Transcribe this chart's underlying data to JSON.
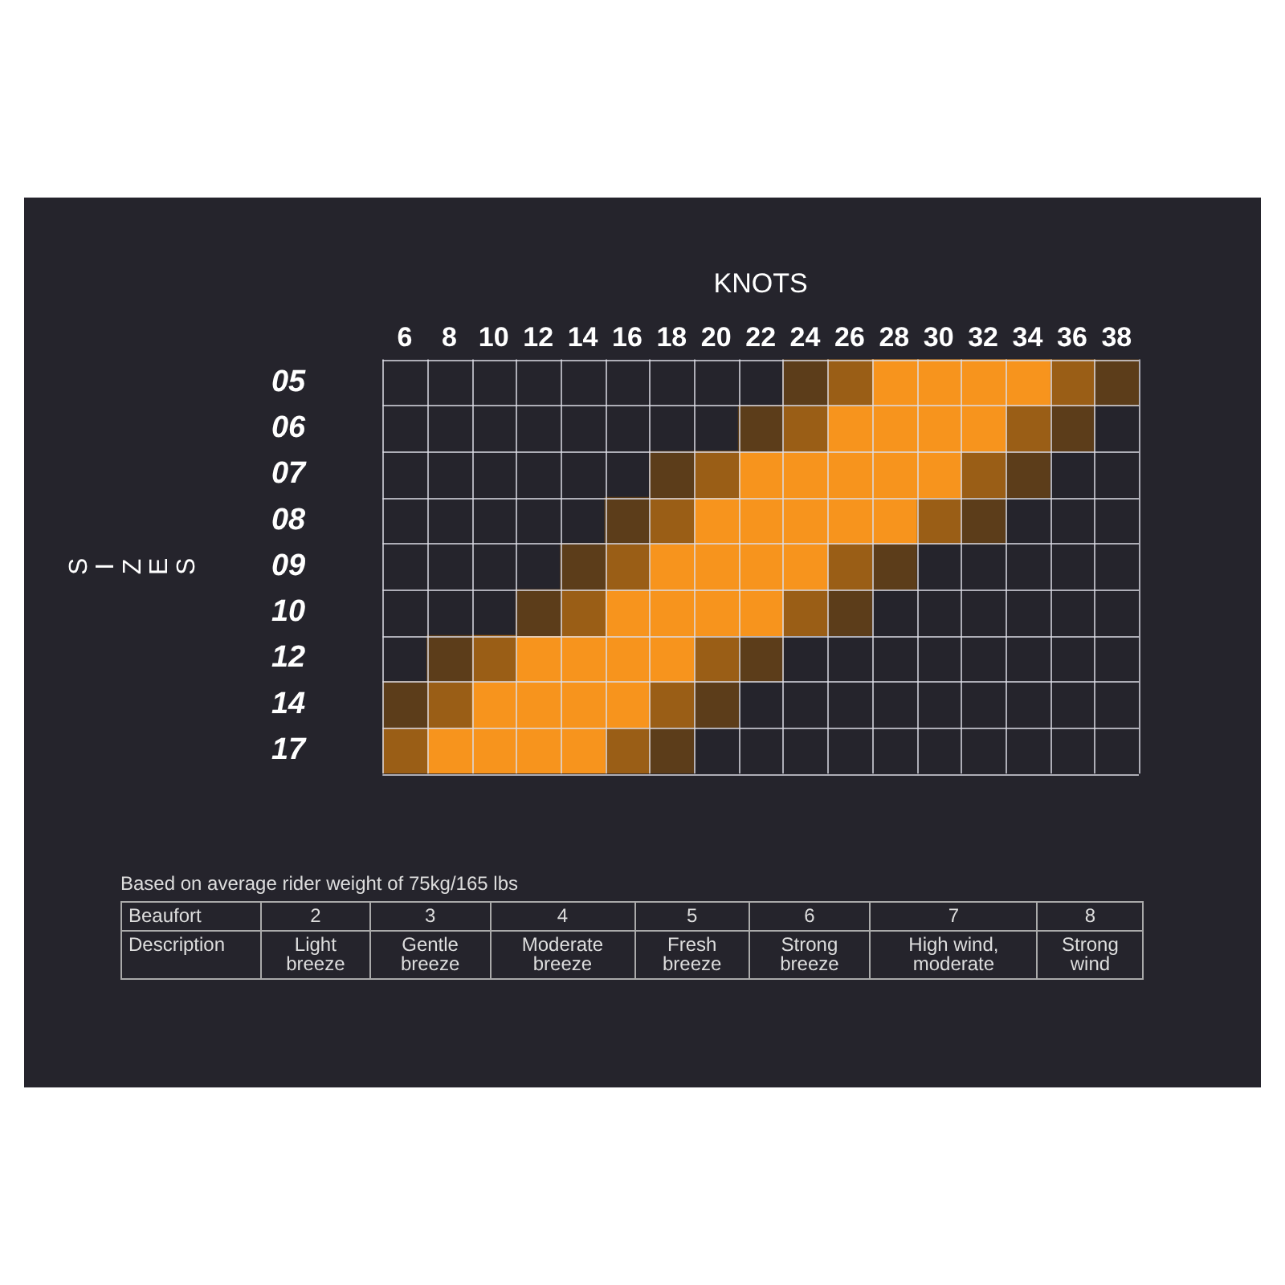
{
  "chart_data": [
    {
      "type": "bar",
      "orientation": "horizontal",
      "xlabel": "KNOTS",
      "ylabel": "SIZES",
      "categories": [
        "05",
        "06",
        "07",
        "08",
        "09",
        "10",
        "12",
        "14",
        "17"
      ],
      "series": [
        {
          "color": "#5c3d1a",
          "base": [
            23,
            21,
            17,
            15,
            13,
            11,
            7,
            5,
            null
          ],
          "values": [
            2,
            2,
            2,
            2,
            2,
            2,
            2,
            2,
            null
          ]
        },
        {
          "color": "#9a5e16",
          "base": [
            25,
            23,
            19,
            17,
            15,
            13,
            9,
            7,
            5
          ],
          "values": [
            2,
            2,
            2,
            2,
            2,
            2,
            2,
            2,
            2
          ]
        },
        {
          "color": "#f7941d",
          "base": [
            27,
            25,
            21,
            19,
            17,
            15,
            11,
            9,
            7
          ],
          "values": [
            8,
            8,
            10,
            10,
            8,
            8,
            8,
            8,
            8
          ]
        },
        {
          "color": "#9a5e16",
          "base": [
            35,
            33,
            31,
            29,
            25,
            23,
            19,
            17,
            15
          ],
          "values": [
            2,
            2,
            2,
            2,
            2,
            2,
            2,
            2,
            2
          ]
        },
        {
          "color": "#5c3d1a",
          "base": [
            37,
            35,
            33,
            31,
            27,
            25,
            21,
            19,
            17
          ],
          "values": [
            2,
            2,
            2,
            2,
            2,
            2,
            2,
            2,
            2
          ]
        }
      ],
      "xlim": [
        5,
        39
      ],
      "xticks": [
        6,
        8,
        10,
        12,
        14,
        16,
        18,
        20,
        22,
        24,
        26,
        28,
        30,
        32,
        34,
        36,
        38
      ],
      "grid": true
    },
    {
      "type": "other",
      "annotations": [
        "Based on average rider weight of 75kg/165 lbs",
        "Beaufort",
        "2",
        "3",
        "4",
        "5",
        "6",
        "7",
        "8",
        "Description",
        "Light breeze",
        "Gentle breeze",
        "Moderate breeze",
        "Fresh breeze",
        "Strong breeze",
        "High wind, moderate",
        "Strong wind"
      ]
    }
  ]
}
